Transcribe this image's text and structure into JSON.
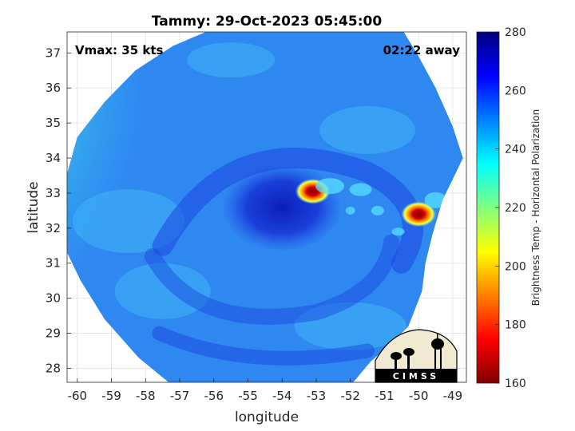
{
  "chart_data": {
    "type": "heatmap",
    "title": "Tammy: 29-Oct-2023 05:45:00",
    "xlabel": "longitude",
    "ylabel": "latitude",
    "xlim": [
      -60.3,
      -48.6
    ],
    "ylim": [
      27.6,
      37.6
    ],
    "x_ticks": [
      -60,
      -59,
      -58,
      -57,
      -56,
      -55,
      -54,
      -53,
      -52,
      -51,
      -50,
      -49
    ],
    "y_ticks": [
      28,
      29,
      30,
      31,
      32,
      33,
      34,
      35,
      36,
      37
    ],
    "grid": true,
    "annotations": {
      "vmax": "Vmax: 35 kts",
      "time_away": "02:22 away"
    },
    "colorbar": {
      "label": "Brightness Temp - Horizontal Polarization",
      "range": [
        160,
        280
      ],
      "ticks": [
        160,
        180,
        200,
        220,
        240,
        260,
        280
      ],
      "colormap": "jet"
    },
    "features": [
      {
        "name": "swath background",
        "value": 250
      },
      {
        "name": "storm center",
        "lon": -54.0,
        "lat": 32.6,
        "value": 268
      },
      {
        "name": "cold convective cell",
        "lon": -53.1,
        "lat": 33.05,
        "value": 168
      },
      {
        "name": "cold convective cell",
        "lon": -50.0,
        "lat": 32.4,
        "value": 175
      }
    ]
  },
  "logo": {
    "text": "CIMSS"
  },
  "colors": {
    "colormap_stops": [
      "#800000",
      "#ff0000",
      "#ff8000",
      "#ffff00",
      "#80ff80",
      "#00ffff",
      "#0080ff",
      "#0000ff",
      "#000080"
    ]
  }
}
